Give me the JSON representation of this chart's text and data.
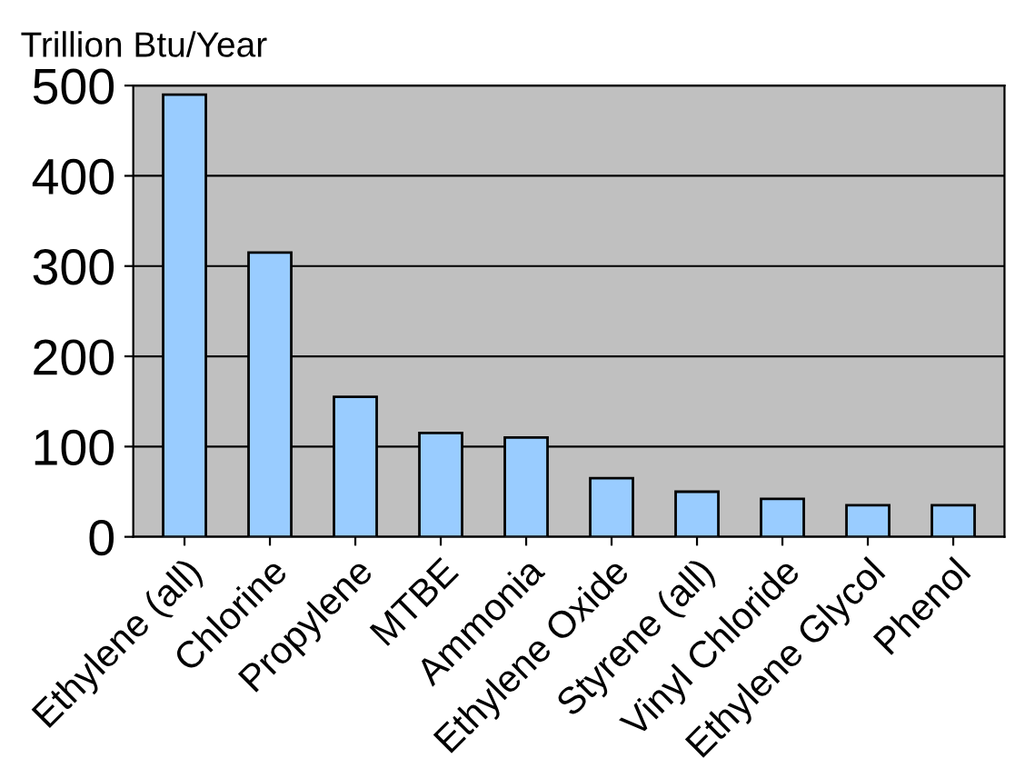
{
  "chart_data": {
    "type": "bar",
    "ylabel": "Trillion Btu/Year",
    "categories": [
      "Ethylene (all)",
      "Chlorine",
      "Propylene",
      "MTBE",
      "Ammonia",
      "Ethylene Oxide",
      "Styrene (all)",
      "Vinyl Chloride",
      "Ethylene Glycol",
      "Phenol"
    ],
    "values": [
      490,
      315,
      155,
      115,
      110,
      65,
      50,
      42,
      35,
      35
    ],
    "color": "#99ccff",
    "ylim": [
      0,
      500
    ],
    "yticks": [
      0,
      100,
      200,
      300,
      400,
      500
    ],
    "grid": "y",
    "legend": false
  }
}
